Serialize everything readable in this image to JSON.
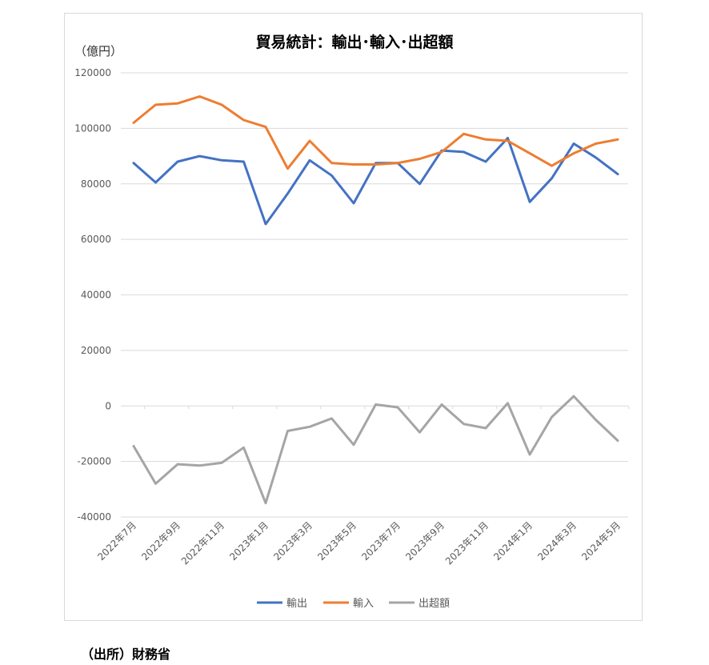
{
  "source_note": "（出所）財務省",
  "chart_data": {
    "type": "line",
    "title": "貿易統計：輸出･輸入･出超額",
    "ylabel": "（億円）",
    "xlabel": "",
    "ylim": [
      -40000,
      120000
    ],
    "yticks": [
      120000,
      100000,
      80000,
      60000,
      40000,
      20000,
      0,
      -20000,
      -40000
    ],
    "grid": true,
    "legend_position": "bottom",
    "categories": [
      "2022年7月",
      "2022年8月",
      "2022年9月",
      "2022年10月",
      "2022年11月",
      "2022年12月",
      "2023年1月",
      "2023年2月",
      "2023年3月",
      "2023年4月",
      "2023年5月",
      "2023年6月",
      "2023年7月",
      "2023年8月",
      "2023年9月",
      "2023年10月",
      "2023年11月",
      "2023年12月",
      "2024年1月",
      "2024年2月",
      "2024年3月",
      "2024年4月",
      "2024年5月"
    ],
    "tick_labels": [
      "2022年7月",
      "2022年9月",
      "2022年11月",
      "2023年1月",
      "2023年3月",
      "2023年5月",
      "2023年7月",
      "2023年9月",
      "2023年11月",
      "2024年1月",
      "2024年3月",
      "2024年5月"
    ],
    "series": [
      {
        "name": "輸出",
        "color": "#4472c4",
        "values": [
          87500,
          80500,
          88000,
          90000,
          88500,
          88000,
          65500,
          76500,
          88500,
          83000,
          73000,
          87500,
          87500,
          80000,
          92000,
          91500,
          88000,
          96500,
          73500,
          82000,
          94500,
          89500,
          83500
        ]
      },
      {
        "name": "輸入",
        "color": "#ed7d31",
        "values": [
          102000,
          108500,
          109000,
          111500,
          108500,
          103000,
          100500,
          85500,
          95500,
          87500,
          87000,
          87000,
          87500,
          89000,
          91500,
          98000,
          96000,
          95500,
          91000,
          86500,
          91000,
          94500,
          96000
        ]
      },
      {
        "name": "出超額",
        "color": "#a5a5a5",
        "values": [
          -14500,
          -28000,
          -21000,
          -21500,
          -20500,
          -15000,
          -35000,
          -9000,
          -7500,
          -4500,
          -14000,
          500,
          -500,
          -9500,
          500,
          -6500,
          -8000,
          1000,
          -17500,
          -4000,
          3500,
          -5000,
          -12500
        ]
      }
    ]
  }
}
